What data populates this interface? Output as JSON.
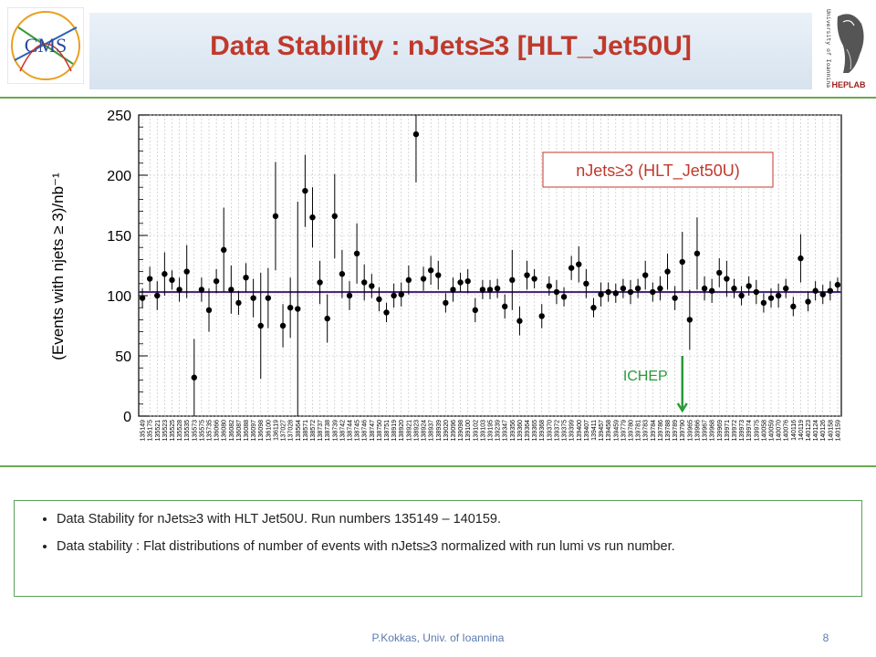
{
  "slide": {
    "title": "Data Stability : nJets≥3 [HLT_Jet50U]",
    "footer": "P.Kokkas, Univ. of Ioannina",
    "page_number": "8",
    "logo_left_text": "CMS",
    "logo_right_text": "University of Ioannina",
    "logo_right_caption": "HEPLAB",
    "bullets": [
      "Data Stability for nJets≥3 with HLT Jet50U. Run numbers 135149 – 140159.",
      "Data stability : Flat distributions of number of events with nJets≥3 normalized with run lumi vs run number."
    ]
  },
  "chart_data": {
    "type": "scatter",
    "ylabel": "(Events with njets ≥ 3)/nb⁻¹",
    "ylim": [
      0,
      250
    ],
    "yticks": [
      0,
      50,
      100,
      150,
      200,
      250
    ],
    "grid": true,
    "legend": "nJets≥3 (HLT_Jet50U)",
    "fit_line_value": 103,
    "annotation": {
      "text": "ICHEP",
      "at_run": "139790"
    },
    "categories": [
      "135149",
      "135175",
      "135521",
      "135523",
      "135525",
      "135528",
      "135535",
      "135573",
      "135575",
      "135735",
      "136066",
      "136080",
      "136082",
      "136087",
      "136088",
      "136097",
      "136098",
      "136100",
      "136119",
      "137027",
      "137028",
      "138564",
      "138571",
      "138572",
      "138737",
      "138738",
      "138739",
      "138742",
      "138744",
      "138745",
      "138746",
      "138747",
      "138750",
      "138751",
      "138919",
      "138920",
      "138921",
      "138923",
      "138924",
      "138937",
      "138939",
      "139020",
      "139096",
      "139098",
      "139100",
      "139102",
      "139103",
      "139195",
      "139239",
      "139347",
      "139356",
      "139360",
      "139364",
      "139365",
      "139368",
      "139370",
      "139372",
      "139375",
      "139399",
      "139400",
      "139407",
      "139411",
      "139457",
      "139458",
      "139459",
      "139779",
      "139780",
      "139781",
      "139783",
      "139784",
      "139786",
      "139788",
      "139789",
      "139790",
      "139965",
      "139966",
      "139967",
      "139968",
      "139969",
      "139971",
      "139972",
      "139973",
      "139974",
      "139975",
      "140058",
      "140059",
      "140070",
      "140076",
      "140116",
      "140119",
      "140123",
      "140124",
      "140126",
      "140158",
      "140159"
    ],
    "values": [
      98,
      114,
      100,
      118,
      113,
      105,
      120,
      32,
      105,
      88,
      112,
      138,
      105,
      94,
      115,
      98,
      75,
      98,
      166,
      75,
      90,
      89,
      187,
      165,
      111,
      81,
      166,
      118,
      100,
      135,
      111,
      108,
      97,
      86,
      100,
      101,
      113,
      234,
      114,
      121,
      117,
      94,
      105,
      111,
      112,
      88,
      105,
      105,
      106,
      91,
      113,
      79,
      117,
      114,
      83,
      108,
      103,
      99,
      123,
      126,
      110,
      90,
      101,
      103,
      102,
      106,
      103,
      106,
      117,
      103,
      106,
      120,
      98,
      128,
      80,
      135,
      106,
      104,
      119,
      114,
      106,
      100,
      108,
      103,
      94,
      98,
      100,
      106,
      91,
      131,
      95,
      104,
      101,
      104,
      109
    ],
    "errors": [
      8,
      10,
      12,
      18,
      8,
      10,
      22,
      32,
      10,
      18,
      10,
      35,
      20,
      10,
      12,
      16,
      44,
      25,
      45,
      18,
      25,
      89,
      30,
      25,
      18,
      20,
      35,
      20,
      12,
      25,
      15,
      10,
      10,
      8,
      10,
      10,
      12,
      40,
      10,
      12,
      12,
      8,
      10,
      8,
      10,
      10,
      8,
      8,
      8,
      10,
      25,
      12,
      12,
      8,
      10,
      8,
      10,
      8,
      10,
      15,
      12,
      8,
      10,
      8,
      8,
      8,
      10,
      8,
      12,
      8,
      10,
      15,
      10,
      25,
      25,
      30,
      10,
      10,
      12,
      15,
      8,
      8,
      8,
      10,
      8,
      8,
      10,
      8,
      8,
      20,
      8,
      8,
      8,
      8,
      6
    ]
  }
}
